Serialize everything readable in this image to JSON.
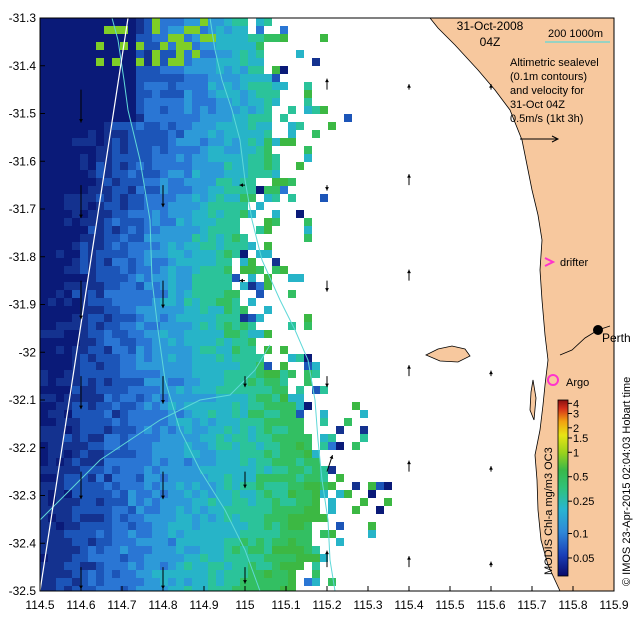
{
  "header": {
    "date": "31-Oct-2008",
    "time": "04Z"
  },
  "legend": {
    "bathymetry_label": "200  1000m",
    "description_lines": [
      "Altimetric sealevel",
      "(0.1m contours)",
      "and velocity for",
      "31-Oct 04Z",
      "0.5m/s (1kt 3h)"
    ]
  },
  "markers": {
    "drifter_label": "drifter",
    "argo_label": "Argo",
    "city_label": "Perth"
  },
  "colorbar": {
    "caption": "MODIS Chl-a mg/m3 OC3",
    "ticks": [
      "4",
      "3",
      "2",
      "1.5",
      "1",
      "0.5",
      "0.25",
      "0.1",
      "0.05"
    ],
    "tick_values": [
      4,
      3,
      2,
      1.5,
      1,
      0.5,
      0.25,
      0.1,
      0.05
    ],
    "colors": [
      "#0a0a6a",
      "#1a3fb8",
      "#2f88d8",
      "#29b6d0",
      "#2fc27a",
      "#38b84a",
      "#9ad21c",
      "#e8e414",
      "#f2a010",
      "#d6301a",
      "#8a1010"
    ]
  },
  "credit": "© IMOS 23-Apr-2015 02:04:03 Hobart time",
  "chart_data": {
    "type": "heatmap",
    "x_ticks": [
      "114.5",
      "114.6",
      "114.7",
      "114.8",
      "114.9",
      "115",
      "115.1",
      "115.2",
      "115.3",
      "115.4",
      "115.5",
      "115.6",
      "115.7",
      "115.8",
      "115.9"
    ],
    "y_ticks": [
      "-31.3",
      "-31.4",
      "-31.5",
      "-31.6",
      "-31.7",
      "-31.8",
      "-31.9",
      "-32",
      "-32.1",
      "-32.2",
      "-32.3",
      "-32.4",
      "-32.5"
    ],
    "xlim": [
      114.5,
      115.9
    ],
    "ylim": [
      -32.5,
      -31.3
    ],
    "drifter_position": [
      115.75,
      -31.8
    ],
    "argo_position": [
      115.75,
      -32.09
    ],
    "perth_position": [
      115.86,
      -31.95
    ],
    "velocity_arrows": [
      {
        "lon": 114.6,
        "lat": -31.45,
        "u": 0.0,
        "v": -0.3
      },
      {
        "lon": 114.6,
        "lat": -31.65,
        "u": 0.0,
        "v": -0.3
      },
      {
        "lon": 114.6,
        "lat": -31.85,
        "u": 0.0,
        "v": -0.35
      },
      {
        "lon": 114.6,
        "lat": -32.05,
        "u": 0.0,
        "v": -0.3
      },
      {
        "lon": 114.6,
        "lat": -32.25,
        "u": 0.0,
        "v": -0.25
      },
      {
        "lon": 114.6,
        "lat": -32.45,
        "u": 0.0,
        "v": -0.2
      },
      {
        "lon": 114.8,
        "lat": -31.65,
        "u": 0.0,
        "v": -0.2
      },
      {
        "lon": 114.8,
        "lat": -31.85,
        "u": 0.0,
        "v": -0.25
      },
      {
        "lon": 114.8,
        "lat": -32.05,
        "u": 0.0,
        "v": -0.25
      },
      {
        "lon": 114.8,
        "lat": -32.25,
        "u": 0.0,
        "v": -0.25
      },
      {
        "lon": 114.8,
        "lat": -32.45,
        "u": 0.0,
        "v": -0.2
      },
      {
        "lon": 115.0,
        "lat": -31.65,
        "u": -0.05,
        "v": 0.0
      },
      {
        "lon": 115.0,
        "lat": -31.85,
        "u": -0.05,
        "v": 0.0
      },
      {
        "lon": 115.0,
        "lat": -32.05,
        "u": 0.0,
        "v": -0.1
      },
      {
        "lon": 115.0,
        "lat": -32.25,
        "u": 0.0,
        "v": -0.15
      },
      {
        "lon": 115.0,
        "lat": -32.45,
        "u": 0.0,
        "v": -0.15
      },
      {
        "lon": 115.2,
        "lat": -31.45,
        "u": 0.0,
        "v": 0.1
      },
      {
        "lon": 115.2,
        "lat": -31.65,
        "u": 0.0,
        "v": -0.05
      },
      {
        "lon": 115.2,
        "lat": -31.85,
        "u": 0.0,
        "v": -0.1
      },
      {
        "lon": 115.2,
        "lat": -32.05,
        "u": 0.0,
        "v": -0.1
      },
      {
        "lon": 115.2,
        "lat": -32.25,
        "u": 0.05,
        "v": 0.15
      },
      {
        "lon": 115.2,
        "lat": -32.45,
        "u": 0.0,
        "v": 0.15
      },
      {
        "lon": 115.4,
        "lat": -31.45,
        "u": 0.0,
        "v": 0.05
      },
      {
        "lon": 115.4,
        "lat": -31.65,
        "u": 0.0,
        "v": 0.1
      },
      {
        "lon": 115.4,
        "lat": -31.85,
        "u": 0.0,
        "v": 0.1
      },
      {
        "lon": 115.4,
        "lat": -32.05,
        "u": 0.0,
        "v": 0.1
      },
      {
        "lon": 115.4,
        "lat": -32.25,
        "u": 0.0,
        "v": 0.1
      },
      {
        "lon": 115.4,
        "lat": -32.45,
        "u": 0.0,
        "v": 0.1
      },
      {
        "lon": 115.6,
        "lat": -31.45,
        "u": 0.0,
        "v": 0.05
      },
      {
        "lon": 115.6,
        "lat": -32.05,
        "u": 0.0,
        "v": 0.05
      },
      {
        "lon": 115.6,
        "lat": -32.25,
        "u": 0.0,
        "v": 0.05
      },
      {
        "lon": 115.6,
        "lat": -32.45,
        "u": 0.0,
        "v": 0.05
      }
    ]
  },
  "colors": {
    "land": "#f7c89e",
    "coast": "#000000",
    "contour": "#5fd8d8",
    "track": "#ffffff",
    "marker": "#ff33cc",
    "arrow": "#000000"
  }
}
